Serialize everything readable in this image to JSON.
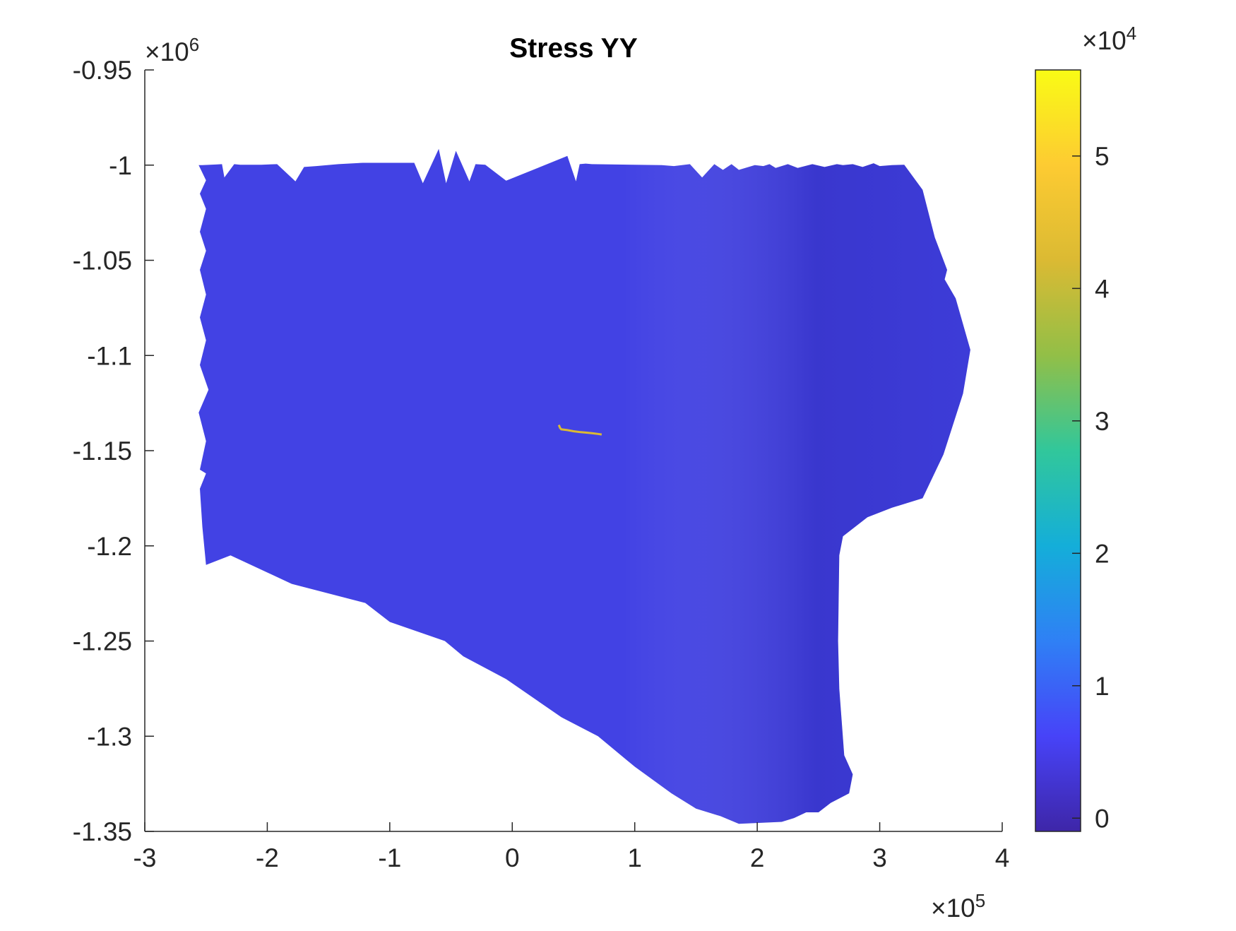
{
  "chart_data": {
    "type": "heatmap",
    "title": "Stress YY",
    "xlabel": "",
    "ylabel": "",
    "x_exponent_label": "×10",
    "x_exponent": "5",
    "y_exponent_label": "×10",
    "y_exponent": "6",
    "colorbar_exponent_label": "×10",
    "colorbar_exponent": "4",
    "xlim": [
      -3,
      4
    ],
    "ylim": [
      -1.35,
      -0.95
    ],
    "xticks": [
      "-3",
      "-2",
      "-1",
      "0",
      "1",
      "2",
      "3",
      "4"
    ],
    "yticks": [
      "-0.95",
      "-1",
      "-1.05",
      "-1.1",
      "-1.15",
      "-1.2",
      "-1.25",
      "-1.3",
      "-1.35"
    ],
    "colorbar": {
      "ticks": [
        "0",
        "1",
        "2",
        "3",
        "4",
        "5"
      ],
      "clim": [
        -0.1,
        5.65
      ],
      "colormap": "parula",
      "colors": [
        "#3e26a8",
        "#4743f8",
        "#2f80f5",
        "#14aed9",
        "#31c79b",
        "#92bf47",
        "#dbba33",
        "#fdcb32",
        "#f9fb15"
      ]
    },
    "grid": false,
    "legend": "none",
    "region": {
      "base_color": "#4242e4",
      "outline_x": [
        -2.53,
        -2.42,
        -2.37,
        -2.35,
        -2.27,
        -2.22,
        -2.05,
        -1.92,
        -1.77,
        -1.7,
        -1.6,
        -1.42,
        -1.22,
        -0.8,
        -0.73,
        -0.6,
        -0.54,
        -0.46,
        -0.35,
        -0.3,
        -0.22,
        -0.05,
        0.45,
        0.52,
        0.55,
        0.6,
        0.65,
        1.22,
        1.32,
        1.45,
        1.55,
        1.65,
        1.72,
        1.79,
        1.83,
        1.85,
        1.98,
        2.05,
        2.1,
        2.15,
        2.25,
        2.33,
        2.45,
        2.55,
        2.65,
        2.7,
        2.78,
        2.86,
        2.95,
        3.0,
        3.1,
        3.2,
        3.35,
        3.45,
        3.55,
        3.53,
        3.62,
        3.74,
        3.68,
        3.52,
        3.35,
        3.1,
        2.9,
        2.7,
        2.67,
        2.66,
        2.67,
        2.71,
        2.78,
        2.75,
        2.6,
        2.5,
        2.4,
        2.3,
        2.2,
        1.85,
        1.7,
        1.5,
        1.3,
        1.0,
        0.7,
        0.4,
        -0.05,
        -0.4,
        -0.55,
        -1.0,
        -1.2,
        -1.8,
        -2.3,
        -2.5,
        -2.53,
        -2.55,
        -2.5,
        -2.55,
        -2.5,
        -2.56,
        -2.48,
        -2.55,
        -2.5,
        -2.55,
        -2.5,
        -2.55,
        -2.5,
        -2.55,
        -2.5,
        -2.55,
        -2.5,
        -2.56
      ],
      "outline_y": [
        -1.0,
        -0.9997,
        -0.9995,
        -1.0065,
        -0.9995,
        -0.9998,
        -0.9998,
        -0.9995,
        -1.0085,
        -1.001,
        -1.0005,
        -0.9995,
        -0.9988,
        -0.9988,
        -1.0095,
        -0.9915,
        -1.0095,
        -0.9925,
        -1.0085,
        -0.9995,
        -0.9998,
        -1.0082,
        -0.9952,
        -1.0085,
        -0.9995,
        -0.9992,
        -0.9995,
        -1.0,
        -1.0005,
        -0.9995,
        -1.0065,
        -0.9995,
        -1.0025,
        -0.9995,
        -1.0015,
        -1.0025,
        -1.0,
        -1.0005,
        -0.9995,
        -1.0015,
        -0.9995,
        -1.0015,
        -0.9995,
        -1.001,
        -0.9995,
        -1.0,
        -0.9995,
        -1.001,
        -0.999,
        -1.0005,
        -1.0,
        -0.9998,
        -1.013,
        -1.038,
        -1.055,
        -1.06,
        -1.07,
        -1.097,
        -1.12,
        -1.152,
        -1.175,
        -1.18,
        -1.185,
        -1.195,
        -1.205,
        -1.25,
        -1.275,
        -1.31,
        -1.32,
        -1.33,
        -1.335,
        -1.34,
        -1.34,
        -1.343,
        -1.345,
        -1.346,
        -1.342,
        -1.338,
        -1.33,
        -1.316,
        -1.3,
        -1.29,
        -1.27,
        -1.258,
        -1.25,
        -1.24,
        -1.23,
        -1.22,
        -1.205,
        -1.21,
        -1.19,
        -1.17,
        -1.162,
        -1.16,
        -1.145,
        -1.13,
        -1.118,
        -1.105,
        -1.092,
        -1.08,
        -1.068,
        -1.055,
        -1.045,
        -1.035,
        -1.023,
        -1.015,
        -1.008,
        -1.0
      ],
      "highlight": {
        "color": "#dbba33",
        "x": [
          0.38,
          0.39,
          0.4,
          0.45,
          0.5,
          0.55,
          0.6,
          0.65,
          0.7,
          0.73
        ],
        "y": [
          -1.1365,
          -1.138,
          -1.1388,
          -1.1392,
          -1.1398,
          -1.1402,
          -1.1405,
          -1.1408,
          -1.1412,
          -1.1415
        ]
      }
    }
  }
}
